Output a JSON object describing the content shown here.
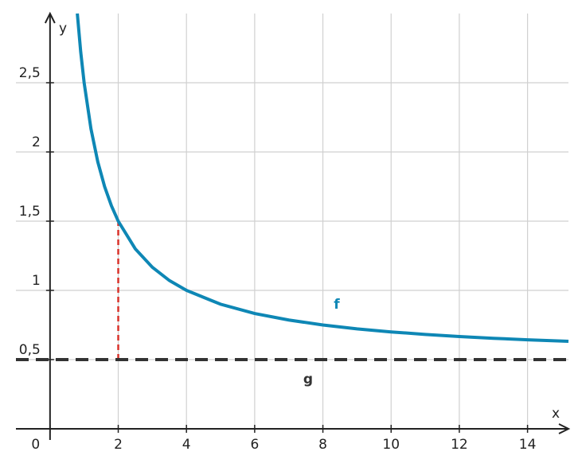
{
  "chart_data": {
    "type": "line",
    "x_label": "x",
    "y_label": "y",
    "xlim": [
      -1,
      15.2
    ],
    "ylim": [
      0,
      3
    ],
    "xticks": [
      0,
      2,
      4,
      6,
      8,
      10,
      12,
      14
    ],
    "yticks": [
      {
        "value": 0.5,
        "label": "0,5"
      },
      1,
      {
        "value": 1.5,
        "label": "1,5"
      },
      2,
      {
        "value": 2.5,
        "label": "2,5"
      }
    ],
    "grid": true,
    "series": [
      {
        "name": "f",
        "color": "#0e87b5",
        "style": "solid",
        "x": [
          0.8,
          0.9,
          1,
          1.2,
          1.4,
          1.6,
          1.8,
          2,
          2.5,
          3,
          3.5,
          4,
          5,
          6,
          7,
          8,
          9,
          10,
          11,
          12,
          13,
          14,
          15.2
        ],
        "values": [
          3.0,
          2.722,
          2.5,
          2.167,
          1.929,
          1.75,
          1.611,
          1.5,
          1.3,
          1.167,
          1.071,
          1,
          0.9,
          0.833,
          0.786,
          0.75,
          0.722,
          0.7,
          0.682,
          0.667,
          0.654,
          0.643,
          0.632
        ]
      },
      {
        "name": "g",
        "color": "#333333",
        "style": "dashed",
        "x": [
          -1,
          15.2
        ],
        "values": [
          0.5,
          0.5
        ]
      }
    ],
    "reference_line": {
      "x": 2,
      "y": [
        0.5,
        1.5
      ],
      "color": "#d9332b"
    }
  }
}
